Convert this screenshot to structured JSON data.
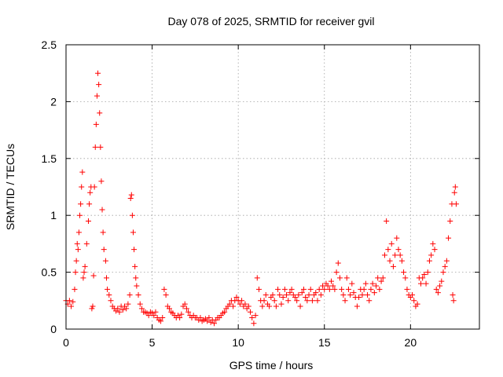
{
  "chart_data": {
    "type": "scatter",
    "title": "Day 078 of 2025, SRMTID for receiver gvil",
    "xlabel": "GPS time / hours",
    "ylabel": "SRMTID / TECUs",
    "xlim": [
      0,
      24.0
    ],
    "ylim": [
      0,
      2.5
    ],
    "x_ticks": [
      0,
      5,
      10,
      15,
      20
    ],
    "x_tick_labels": [
      "0",
      "5",
      "10",
      "15",
      "20"
    ],
    "y_ticks": [
      0,
      0.5,
      1,
      1.5,
      2,
      2.5
    ],
    "y_tick_labels": [
      "0",
      "0.5",
      "1",
      "1.5",
      "2",
      "2.5"
    ],
    "grid": true,
    "marker": "+",
    "series_color": "#ff0000",
    "series": [
      {
        "name": "SRMTID",
        "points": [
          [
            0.0,
            0.25
          ],
          [
            0.1,
            0.22
          ],
          [
            0.2,
            0.25
          ],
          [
            0.3,
            0.2
          ],
          [
            0.4,
            0.24
          ],
          [
            0.5,
            0.35
          ],
          [
            0.55,
            0.5
          ],
          [
            0.6,
            0.6
          ],
          [
            0.65,
            0.75
          ],
          [
            0.7,
            0.7
          ],
          [
            0.75,
            0.85
          ],
          [
            0.8,
            1.0
          ],
          [
            0.85,
            1.1
          ],
          [
            0.9,
            1.25
          ],
          [
            0.95,
            1.38
          ],
          [
            1.0,
            0.45
          ],
          [
            1.05,
            0.5
          ],
          [
            1.1,
            0.55
          ],
          [
            1.2,
            0.75
          ],
          [
            1.3,
            0.95
          ],
          [
            1.35,
            1.1
          ],
          [
            1.4,
            1.2
          ],
          [
            1.45,
            1.25
          ],
          [
            1.5,
            0.18
          ],
          [
            1.55,
            0.2
          ],
          [
            1.6,
            0.47
          ],
          [
            1.65,
            1.25
          ],
          [
            1.7,
            1.6
          ],
          [
            1.75,
            1.8
          ],
          [
            1.8,
            2.05
          ],
          [
            1.85,
            2.25
          ],
          [
            1.9,
            2.15
          ],
          [
            1.95,
            1.9
          ],
          [
            2.0,
            1.6
          ],
          [
            2.05,
            1.3
          ],
          [
            2.1,
            1.05
          ],
          [
            2.15,
            0.85
          ],
          [
            2.2,
            0.7
          ],
          [
            2.3,
            0.6
          ],
          [
            2.35,
            0.45
          ],
          [
            2.4,
            0.35
          ],
          [
            2.5,
            0.3
          ],
          [
            2.6,
            0.25
          ],
          [
            2.7,
            0.2
          ],
          [
            2.8,
            0.18
          ],
          [
            2.9,
            0.16
          ],
          [
            3.0,
            0.18
          ],
          [
            3.1,
            0.15
          ],
          [
            3.2,
            0.2
          ],
          [
            3.3,
            0.17
          ],
          [
            3.4,
            0.2
          ],
          [
            3.5,
            0.18
          ],
          [
            3.6,
            0.22
          ],
          [
            3.7,
            0.3
          ],
          [
            3.75,
            1.15
          ],
          [
            3.8,
            1.18
          ],
          [
            3.85,
            1.0
          ],
          [
            3.9,
            0.85
          ],
          [
            3.95,
            0.7
          ],
          [
            4.0,
            0.55
          ],
          [
            4.05,
            0.45
          ],
          [
            4.1,
            0.38
          ],
          [
            4.2,
            0.3
          ],
          [
            4.3,
            0.22
          ],
          [
            4.4,
            0.18
          ],
          [
            4.5,
            0.15
          ],
          [
            4.6,
            0.15
          ],
          [
            4.7,
            0.14
          ],
          [
            4.8,
            0.12
          ],
          [
            4.9,
            0.15
          ],
          [
            5.0,
            0.14
          ],
          [
            5.1,
            0.12
          ],
          [
            5.2,
            0.15
          ],
          [
            5.3,
            0.1
          ],
          [
            5.4,
            0.08
          ],
          [
            5.5,
            0.07
          ],
          [
            5.6,
            0.1
          ],
          [
            5.7,
            0.35
          ],
          [
            5.8,
            0.3
          ],
          [
            5.9,
            0.2
          ],
          [
            6.0,
            0.18
          ],
          [
            6.1,
            0.15
          ],
          [
            6.2,
            0.14
          ],
          [
            6.3,
            0.12
          ],
          [
            6.4,
            0.1
          ],
          [
            6.5,
            0.12
          ],
          [
            6.6,
            0.1
          ],
          [
            6.7,
            0.13
          ],
          [
            6.8,
            0.2
          ],
          [
            6.9,
            0.22
          ],
          [
            7.0,
            0.18
          ],
          [
            7.1,
            0.15
          ],
          [
            7.2,
            0.12
          ],
          [
            7.3,
            0.1
          ],
          [
            7.4,
            0.12
          ],
          [
            7.5,
            0.1
          ],
          [
            7.6,
            0.1
          ],
          [
            7.7,
            0.08
          ],
          [
            7.8,
            0.1
          ],
          [
            7.9,
            0.07
          ],
          [
            8.0,
            0.08
          ],
          [
            8.1,
            0.09
          ],
          [
            8.2,
            0.07
          ],
          [
            8.3,
            0.1
          ],
          [
            8.4,
            0.06
          ],
          [
            8.5,
            0.08
          ],
          [
            8.6,
            0.05
          ],
          [
            8.7,
            0.08
          ],
          [
            8.8,
            0.1
          ],
          [
            8.9,
            0.1
          ],
          [
            9.0,
            0.12
          ],
          [
            9.1,
            0.14
          ],
          [
            9.2,
            0.15
          ],
          [
            9.3,
            0.18
          ],
          [
            9.4,
            0.2
          ],
          [
            9.5,
            0.22
          ],
          [
            9.6,
            0.25
          ],
          [
            9.7,
            0.2
          ],
          [
            9.8,
            0.25
          ],
          [
            9.9,
            0.28
          ],
          [
            10.0,
            0.25
          ],
          [
            10.1,
            0.22
          ],
          [
            10.2,
            0.25
          ],
          [
            10.3,
            0.2
          ],
          [
            10.4,
            0.22
          ],
          [
            10.5,
            0.18
          ],
          [
            10.6,
            0.2
          ],
          [
            10.7,
            0.15
          ],
          [
            10.8,
            0.1
          ],
          [
            10.9,
            0.05
          ],
          [
            11.0,
            0.12
          ],
          [
            11.1,
            0.45
          ],
          [
            11.2,
            0.35
          ],
          [
            11.3,
            0.25
          ],
          [
            11.4,
            0.2
          ],
          [
            11.5,
            0.25
          ],
          [
            11.6,
            0.3
          ],
          [
            11.7,
            0.22
          ],
          [
            11.8,
            0.2
          ],
          [
            11.9,
            0.28
          ],
          [
            12.0,
            0.3
          ],
          [
            12.1,
            0.25
          ],
          [
            12.2,
            0.2
          ],
          [
            12.3,
            0.35
          ],
          [
            12.4,
            0.3
          ],
          [
            12.5,
            0.22
          ],
          [
            12.6,
            0.28
          ],
          [
            12.7,
            0.35
          ],
          [
            12.8,
            0.3
          ],
          [
            12.9,
            0.25
          ],
          [
            13.0,
            0.32
          ],
          [
            13.1,
            0.35
          ],
          [
            13.2,
            0.3
          ],
          [
            13.3,
            0.28
          ],
          [
            13.4,
            0.25
          ],
          [
            13.5,
            0.3
          ],
          [
            13.6,
            0.2
          ],
          [
            13.7,
            0.32
          ],
          [
            13.8,
            0.35
          ],
          [
            13.9,
            0.28
          ],
          [
            14.0,
            0.25
          ],
          [
            14.1,
            0.3
          ],
          [
            14.2,
            0.35
          ],
          [
            14.3,
            0.25
          ],
          [
            14.4,
            0.3
          ],
          [
            14.5,
            0.32
          ],
          [
            14.6,
            0.25
          ],
          [
            14.7,
            0.35
          ],
          [
            14.8,
            0.3
          ],
          [
            14.9,
            0.38
          ],
          [
            15.0,
            0.35
          ],
          [
            15.1,
            0.4
          ],
          [
            15.2,
            0.38
          ],
          [
            15.3,
            0.35
          ],
          [
            15.4,
            0.42
          ],
          [
            15.5,
            0.38
          ],
          [
            15.6,
            0.35
          ],
          [
            15.7,
            0.5
          ],
          [
            15.8,
            0.58
          ],
          [
            15.9,
            0.45
          ],
          [
            16.0,
            0.35
          ],
          [
            16.1,
            0.3
          ],
          [
            16.2,
            0.25
          ],
          [
            16.3,
            0.45
          ],
          [
            16.4,
            0.35
          ],
          [
            16.5,
            0.3
          ],
          [
            16.6,
            0.4
          ],
          [
            16.7,
            0.32
          ],
          [
            16.8,
            0.28
          ],
          [
            16.9,
            0.2
          ],
          [
            17.0,
            0.28
          ],
          [
            17.1,
            0.35
          ],
          [
            17.2,
            0.3
          ],
          [
            17.3,
            0.35
          ],
          [
            17.4,
            0.4
          ],
          [
            17.5,
            0.3
          ],
          [
            17.6,
            0.25
          ],
          [
            17.7,
            0.35
          ],
          [
            17.8,
            0.4
          ],
          [
            17.9,
            0.32
          ],
          [
            18.0,
            0.38
          ],
          [
            18.1,
            0.45
          ],
          [
            18.2,
            0.35
          ],
          [
            18.3,
            0.42
          ],
          [
            18.4,
            0.45
          ],
          [
            18.5,
            0.65
          ],
          [
            18.6,
            0.95
          ],
          [
            18.7,
            0.7
          ],
          [
            18.8,
            0.6
          ],
          [
            18.9,
            0.75
          ],
          [
            19.0,
            0.55
          ],
          [
            19.1,
            0.65
          ],
          [
            19.2,
            0.8
          ],
          [
            19.3,
            0.7
          ],
          [
            19.4,
            0.65
          ],
          [
            19.5,
            0.6
          ],
          [
            19.6,
            0.5
          ],
          [
            19.7,
            0.45
          ],
          [
            19.8,
            0.35
          ],
          [
            19.9,
            0.3
          ],
          [
            20.0,
            0.28
          ],
          [
            20.1,
            0.3
          ],
          [
            20.2,
            0.25
          ],
          [
            20.3,
            0.2
          ],
          [
            20.4,
            0.22
          ],
          [
            20.5,
            0.45
          ],
          [
            20.6,
            0.4
          ],
          [
            20.7,
            0.45
          ],
          [
            20.8,
            0.48
          ],
          [
            20.9,
            0.4
          ],
          [
            21.0,
            0.5
          ],
          [
            21.1,
            0.6
          ],
          [
            21.2,
            0.65
          ],
          [
            21.3,
            0.75
          ],
          [
            21.4,
            0.7
          ],
          [
            21.5,
            0.35
          ],
          [
            21.6,
            0.32
          ],
          [
            21.7,
            0.38
          ],
          [
            21.8,
            0.42
          ],
          [
            21.9,
            0.5
          ],
          [
            22.0,
            0.55
          ],
          [
            22.1,
            0.6
          ],
          [
            22.2,
            0.8
          ],
          [
            22.3,
            0.95
          ],
          [
            22.4,
            1.1
          ],
          [
            22.45,
            0.3
          ],
          [
            22.5,
            0.25
          ],
          [
            22.55,
            1.2
          ],
          [
            22.6,
            1.25
          ],
          [
            22.65,
            1.1
          ]
        ]
      }
    ]
  }
}
